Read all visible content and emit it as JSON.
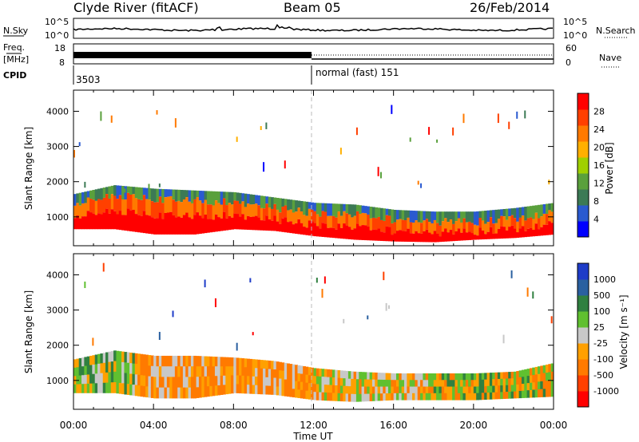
{
  "header": {
    "station": "Clyde River (fitACF)",
    "beam": "Beam 05",
    "date": "26/Feb/2014"
  },
  "noise_panel": {
    "left_label": "N.Sky",
    "right_label": "N.Search",
    "ticks": [
      "10^5",
      "10^0"
    ]
  },
  "freq_panel": {
    "left_label_1": "Freq.",
    "left_label_2": "[MHz]",
    "left_ticks": [
      "18",
      "8"
    ],
    "right_label": "Nave",
    "right_ticks": [
      "60",
      "0"
    ]
  },
  "cpid": {
    "label": "CPID",
    "first_id": "3503",
    "second": "normal (fast) 151"
  },
  "colors": {
    "power_scale": [
      "#0000ff",
      "#2a5ad0",
      "#3c7a55",
      "#5aa03c",
      "#a0d000",
      "#ffb000",
      "#ff7a00",
      "#ff4000",
      "#ff0000"
    ],
    "velocity_scale": [
      "#ff0000",
      "#ff4000",
      "#ff7a00",
      "#ffa000",
      "#c8c8c8",
      "#60c030",
      "#308040",
      "#2a60a0",
      "#1e3cc8"
    ]
  },
  "chart_data": [
    {
      "type": "heatmap",
      "name": "power",
      "xlabel": "Time UT",
      "ylabel": "Slant Range [km]",
      "x_ticks": [
        "00:00",
        "04:00",
        "08:00",
        "12:00",
        "16:00",
        "20:00",
        "00:00"
      ],
      "xlim_hours": [
        0,
        24
      ],
      "y_ticks": [
        1000,
        2000,
        3000,
        4000
      ],
      "ylim_km": [
        180,
        4600
      ],
      "colorbar_label": "Power [dB]",
      "colorbar_ticks": [
        "4",
        "8",
        "12",
        "16",
        "20",
        "24",
        "28"
      ],
      "colorbar_range": [
        0,
        30
      ],
      "scatter_band_km": [
        {
          "t": 0,
          "lo": 650,
          "hi": 1650
        },
        {
          "t": 2,
          "lo": 650,
          "hi": 1900
        },
        {
          "t": 4,
          "lo": 500,
          "hi": 1800
        },
        {
          "t": 6,
          "lo": 500,
          "hi": 1750
        },
        {
          "t": 8,
          "lo": 650,
          "hi": 1700
        },
        {
          "t": 10,
          "lo": 600,
          "hi": 1550
        },
        {
          "t": 12,
          "lo": 450,
          "hi": 1400
        },
        {
          "t": 14,
          "lo": 350,
          "hi": 1350
        },
        {
          "t": 16,
          "lo": 300,
          "hi": 1200
        },
        {
          "t": 18,
          "lo": 280,
          "hi": 1150
        },
        {
          "t": 20,
          "lo": 350,
          "hi": 1150
        },
        {
          "t": 22,
          "lo": 400,
          "hi": 1250
        },
        {
          "t": 24,
          "lo": 500,
          "hi": 1400
        }
      ]
    },
    {
      "type": "heatmap",
      "name": "velocity",
      "xlabel": "Time UT",
      "ylabel": "Slant Range [km]",
      "x_ticks": [
        "00:00",
        "04:00",
        "08:00",
        "12:00",
        "16:00",
        "20:00",
        "00:00"
      ],
      "xlim_hours": [
        0,
        24
      ],
      "y_ticks": [
        1000,
        2000,
        3000,
        4000
      ],
      "ylim_km": [
        180,
        4600
      ],
      "colorbar_label": "Velocity [m s⁻¹]",
      "colorbar_ticks": [
        "1000",
        "500",
        "100",
        "25",
        "-25",
        "-100",
        "-500",
        "-1000"
      ],
      "scatter_band_km": [
        {
          "t": 0,
          "lo": 650,
          "hi": 1600
        },
        {
          "t": 2,
          "lo": 650,
          "hi": 1850
        },
        {
          "t": 4,
          "lo": 500,
          "hi": 1700
        },
        {
          "t": 6,
          "lo": 500,
          "hi": 1700
        },
        {
          "t": 8,
          "lo": 650,
          "hi": 1650
        },
        {
          "t": 10,
          "lo": 600,
          "hi": 1550
        },
        {
          "t": 12,
          "lo": 450,
          "hi": 1350
        },
        {
          "t": 14,
          "lo": 400,
          "hi": 1250
        },
        {
          "t": 16,
          "lo": 450,
          "hi": 1200
        },
        {
          "t": 18,
          "lo": 450,
          "hi": 1200
        },
        {
          "t": 20,
          "lo": 450,
          "hi": 1200
        },
        {
          "t": 22,
          "lo": 500,
          "hi": 1250
        },
        {
          "t": 24,
          "lo": 550,
          "hi": 1500
        }
      ]
    }
  ]
}
